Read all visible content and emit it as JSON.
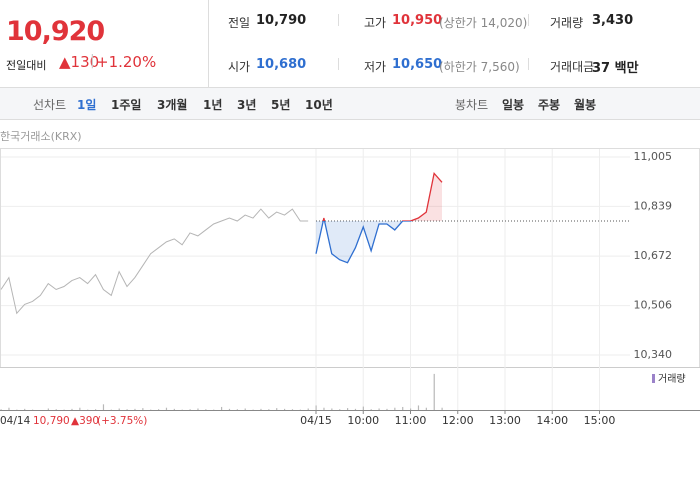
{
  "header": {
    "price": "10,920",
    "change_label": "전일대비",
    "change": "▲130",
    "change_pct": "+1.20%",
    "stats": [
      {
        "label": "전일",
        "value": "10,790",
        "color": "#222222"
      },
      {
        "label": "고가",
        "value": "10,950",
        "note": "(상한가 14,020)",
        "color": "#e0333a"
      },
      {
        "label": "거래량",
        "value": "3,430",
        "color": "#222222"
      },
      {
        "label": "시가",
        "value": "10,680",
        "color": "#2f6fd0"
      },
      {
        "label": "저가",
        "value": "10,650",
        "note": "(하한가 7,560)",
        "color": "#2f6fd0"
      },
      {
        "label": "거래대금",
        "value": "37 백만",
        "color": "#222222"
      }
    ]
  },
  "tabs": {
    "left_label": "선차트",
    "left": [
      "1일",
      "1주일",
      "3개월",
      "1년",
      "3년",
      "5년",
      "10년"
    ],
    "right_label": "봉차트",
    "right": [
      "일봉",
      "주봉",
      "월봉"
    ]
  },
  "source": "한국거래소(KRX)",
  "chart_data": {
    "type": "line",
    "categories": [
      null,
      null,
      null,
      null,
      null,
      null,
      null,
      null,
      null,
      null,
      null,
      null,
      null,
      null,
      null,
      null,
      null,
      null,
      null,
      null,
      null,
      null,
      null,
      null,
      null,
      null,
      null,
      null,
      null,
      null,
      null,
      null,
      null,
      null,
      null,
      null,
      null,
      null,
      null,
      null,
      "04/15",
      null,
      null,
      null,
      null,
      null,
      "10:00",
      null,
      null,
      null,
      null,
      null,
      "11:00",
      null,
      null,
      null,
      null,
      null,
      "12:00",
      null,
      null,
      null,
      null,
      null,
      "13:00",
      null,
      null,
      null,
      null,
      null,
      "14:00",
      null,
      null,
      null,
      null,
      null,
      "15:00",
      null,
      null,
      null
    ],
    "series": [
      {
        "color": "#b5b5b5",
        "values": [
          10560,
          10600,
          10480,
          10510,
          10520,
          10540,
          10580,
          10560,
          10570,
          10590,
          10600,
          10580,
          10610,
          10560,
          10540,
          10620,
          10570,
          10600,
          10640,
          10680,
          10700,
          10720,
          10730,
          10710,
          10750,
          10740,
          10760,
          10780,
          10790,
          10800,
          10790,
          10810,
          10800,
          10830,
          10800,
          10820,
          10810,
          10830,
          10790,
          10790,
          null,
          null,
          null,
          null,
          null,
          null,
          null,
          null,
          null,
          null,
          null,
          null,
          null,
          null,
          null,
          null,
          null,
          null,
          null,
          null,
          null,
          null,
          null,
          null,
          null,
          null,
          null,
          null,
          null,
          null,
          null,
          null,
          null,
          null,
          null,
          null,
          null,
          null,
          null,
          null
        ]
      },
      {
        "color": "#e0333a",
        "color_below": "#2f6fd0",
        "values": [
          null,
          null,
          null,
          null,
          null,
          null,
          null,
          null,
          null,
          null,
          null,
          null,
          null,
          null,
          null,
          null,
          null,
          null,
          null,
          null,
          null,
          null,
          null,
          null,
          null,
          null,
          null,
          null,
          null,
          null,
          null,
          null,
          null,
          null,
          null,
          null,
          null,
          null,
          null,
          null,
          10680,
          10800,
          10680,
          10660,
          10650,
          10700,
          10770,
          10690,
          10780,
          10780,
          10760,
          10790,
          10790,
          10800,
          10820,
          10950,
          10920,
          null,
          null,
          null,
          null,
          null,
          null,
          null,
          null,
          null,
          null,
          null,
          null,
          null,
          null,
          null,
          null,
          null,
          null,
          null,
          null,
          null,
          null,
          null
        ]
      }
    ],
    "baseline": 10790,
    "ylim": [
      10340,
      11005
    ],
    "yticks": [
      {
        "value": 11005,
        "label": "11,005"
      },
      {
        "value": 10839,
        "label": "10,839"
      },
      {
        "value": 10672,
        "label": "10,672"
      },
      {
        "value": 10506,
        "label": "10,506"
      },
      {
        "value": 10340,
        "label": "10,340"
      }
    ],
    "grid": true,
    "volume": {
      "name": "거래량",
      "color": "#b8b8b8",
      "legend_color": "#9b82c9",
      "vlim": [
        0,
        1000
      ],
      "values": [
        20,
        60,
        10,
        30,
        10,
        0,
        40,
        20,
        10,
        30,
        60,
        10,
        20,
        150,
        10,
        40,
        20,
        30,
        50,
        10,
        20,
        60,
        30,
        10,
        20,
        40,
        20,
        10,
        80,
        30,
        20,
        40,
        10,
        30,
        20,
        50,
        30,
        20,
        10,
        40,
        120,
        60,
        40,
        20,
        50,
        30,
        90,
        20,
        40,
        30,
        60,
        80,
        40,
        120,
        60,
        950,
        60,
        null,
        null,
        null,
        null,
        null,
        null,
        null,
        null,
        null,
        null,
        null,
        null,
        null,
        null,
        null,
        null,
        null,
        null,
        null,
        null,
        null,
        null,
        null
      ]
    }
  },
  "footer": {
    "date": "04/14",
    "price": "10,790",
    "change": "▲390",
    "change_pct": "(+3.75%)"
  }
}
